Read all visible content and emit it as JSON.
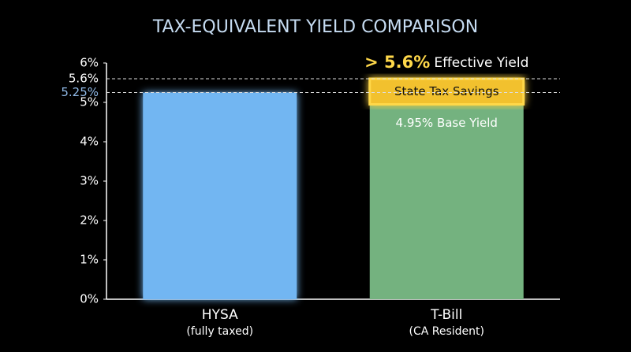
{
  "chart_data": {
    "type": "bar",
    "title": "TAX-EQUIVALENT YIELD COMPARISON",
    "categories": [
      "HYSA",
      "T-Bill"
    ],
    "category_notes": [
      "(fully taxed)",
      "(CA Resident)"
    ],
    "series": [
      {
        "values": [
          5.25,
          4.95
        ],
        "colors": [
          "#72b6f2",
          "#74b27f"
        ],
        "value_labels": [
          null,
          "4.95% Base Yield"
        ]
      },
      {
        "values": [
          null,
          0.65
        ],
        "color": "#f2c12e",
        "segment_labels": [
          null,
          "State Tax Savings"
        ]
      }
    ],
    "annotation": {
      "emphasis": "> 5.6%",
      "text": "Effective Yield"
    },
    "reference_lines": [
      {
        "value": 5.6,
        "label": "5.6%",
        "color": "#ffffff"
      },
      {
        "value": 5.25,
        "label": "5.25%",
        "color": "#8fb8e6"
      }
    ],
    "ylim": [
      0,
      6
    ],
    "yticks": [
      {
        "value": 0,
        "label": "0%"
      },
      {
        "value": 1,
        "label": "1%"
      },
      {
        "value": 2,
        "label": "2%"
      },
      {
        "value": 3,
        "label": "3%"
      },
      {
        "value": 4,
        "label": "4%"
      },
      {
        "value": 5,
        "label": "5%"
      },
      {
        "value": 6,
        "label": "6%"
      }
    ]
  }
}
